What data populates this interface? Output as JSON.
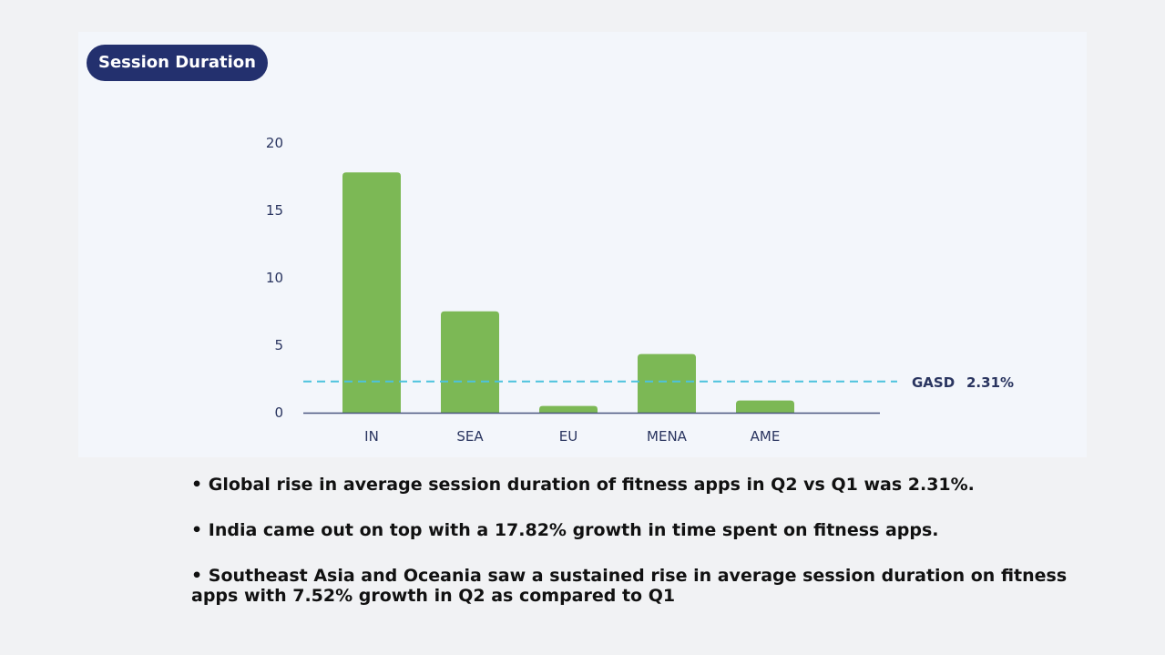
{
  "title": "Session Duration",
  "chart_data": {
    "type": "bar",
    "categories": [
      "IN",
      "SEA",
      "EU",
      "MENA",
      "AME"
    ],
    "values": [
      17.82,
      7.52,
      0.5,
      4.35,
      0.9
    ],
    "ylim": [
      0,
      20
    ],
    "yticks": [
      0,
      5,
      10,
      15,
      20
    ],
    "grid": false,
    "bar_color": "#7cb855",
    "reference_line": {
      "name": "GASD",
      "value": 2.31,
      "label_value": "2.31%",
      "color": "#4dc2dd",
      "style": "dashed"
    }
  },
  "bullets": [
    "• Global rise in average session duration of fitness apps in Q2 vs Q1 was 2.31%.",
    "• India came out on top with a 17.82% growth in time spent on fitness apps.",
    "• Southeast Asia and Oceania saw a sustained rise in average session duration on fitness apps with 7.52% growth in Q2 as compared to Q1"
  ]
}
